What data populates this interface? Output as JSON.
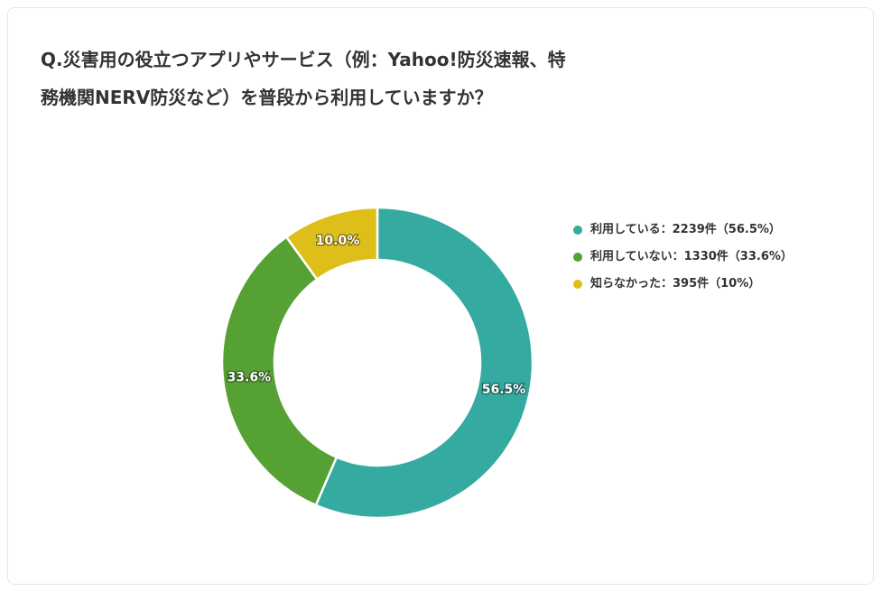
{
  "title": "Q.災害用の役立つアプリやサービス（例：Yahoo!防災速報、特務機関NERV防災など）を普段から利用していますか？",
  "legend": [
    {
      "label": "利用している：2239件（56.5%）",
      "color": "#35aaa1"
    },
    {
      "label": "利用していない：1330件（33.6%）",
      "color": "#56a133"
    },
    {
      "label": "知らなかった：395件（10%）",
      "color": "#debf19"
    }
  ],
  "chart_data": {
    "type": "pie",
    "title": "Q.災害用の役立つアプリやサービス（例：Yahoo!防災速報、特務機関NERV防災など）を普段から利用していますか？",
    "categories": [
      "利用している",
      "利用していない",
      "知らなかった"
    ],
    "values": [
      2239,
      1330,
      395
    ],
    "percent_labels": [
      "56.5%",
      "33.6%",
      "10.0%"
    ],
    "colors": [
      "#35aaa1",
      "#56a133",
      "#debf19"
    ],
    "donut": true,
    "legend_position": "right"
  }
}
